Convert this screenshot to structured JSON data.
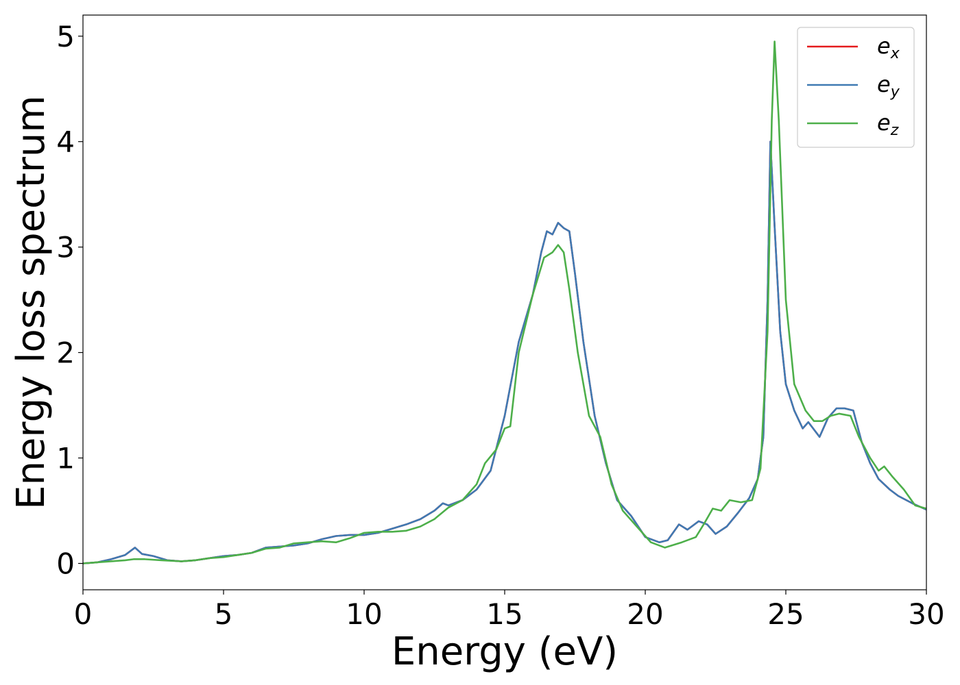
{
  "chart_data": {
    "type": "line",
    "xlabel": "Energy (eV)",
    "ylabel": "Energy loss spectrum",
    "xlim": [
      0,
      30
    ],
    "ylim": [
      -0.25,
      5.2
    ],
    "xticks": [
      "0",
      "5",
      "10",
      "15",
      "20",
      "25",
      "30"
    ],
    "yticks": [
      "0",
      "1",
      "2",
      "3",
      "4",
      "5"
    ],
    "xtick_values": [
      0,
      5,
      10,
      15,
      20,
      25,
      30
    ],
    "ytick_values": [
      0,
      1,
      2,
      3,
      4,
      5
    ],
    "grid": false,
    "legend_position": "top-right",
    "series": [
      {
        "name": "e_x",
        "label_base": "e",
        "label_sub": "x",
        "color": "#e41a1c",
        "points": [
          [
            0,
            0
          ],
          [
            0.5,
            0.01
          ],
          [
            1,
            0.04
          ],
          [
            1.5,
            0.08
          ],
          [
            1.85,
            0.15
          ],
          [
            2.1,
            0.09
          ],
          [
            2.5,
            0.07
          ],
          [
            3,
            0.03
          ],
          [
            3.5,
            0.02
          ],
          [
            4,
            0.03
          ],
          [
            4.5,
            0.05
          ],
          [
            5,
            0.07
          ],
          [
            5.5,
            0.08
          ],
          [
            6,
            0.1
          ],
          [
            6.5,
            0.15
          ],
          [
            7,
            0.16
          ],
          [
            7.5,
            0.17
          ],
          [
            8,
            0.19
          ],
          [
            8.5,
            0.23
          ],
          [
            9,
            0.26
          ],
          [
            9.5,
            0.27
          ],
          [
            10,
            0.27
          ],
          [
            10.5,
            0.29
          ],
          [
            11,
            0.33
          ],
          [
            11.5,
            0.37
          ],
          [
            12,
            0.42
          ],
          [
            12.5,
            0.5
          ],
          [
            12.8,
            0.57
          ],
          [
            13,
            0.55
          ],
          [
            13.5,
            0.6
          ],
          [
            14,
            0.7
          ],
          [
            14.5,
            0.88
          ],
          [
            15,
            1.4
          ],
          [
            15.5,
            2.1
          ],
          [
            16,
            2.55
          ],
          [
            16.3,
            2.95
          ],
          [
            16.5,
            3.15
          ],
          [
            16.7,
            3.12
          ],
          [
            16.9,
            3.23
          ],
          [
            17.1,
            3.18
          ],
          [
            17.3,
            3.15
          ],
          [
            17.5,
            2.75
          ],
          [
            17.8,
            2.1
          ],
          [
            18.2,
            1.4
          ],
          [
            18.6,
            0.95
          ],
          [
            19,
            0.6
          ],
          [
            19.5,
            0.45
          ],
          [
            20,
            0.25
          ],
          [
            20.5,
            0.2
          ],
          [
            20.8,
            0.22
          ],
          [
            21.2,
            0.37
          ],
          [
            21.5,
            0.32
          ],
          [
            21.9,
            0.4
          ],
          [
            22.2,
            0.37
          ],
          [
            22.5,
            0.28
          ],
          [
            22.9,
            0.35
          ],
          [
            23.3,
            0.48
          ],
          [
            23.7,
            0.62
          ],
          [
            24,
            0.8
          ],
          [
            24.2,
            1.2
          ],
          [
            24.35,
            2.5
          ],
          [
            24.45,
            4.0
          ],
          [
            24.6,
            3.2
          ],
          [
            24.8,
            2.2
          ],
          [
            25,
            1.7
          ],
          [
            25.3,
            1.45
          ],
          [
            25.6,
            1.28
          ],
          [
            25.8,
            1.34
          ],
          [
            26.2,
            1.2
          ],
          [
            26.5,
            1.38
          ],
          [
            26.8,
            1.47
          ],
          [
            27.1,
            1.47
          ],
          [
            27.4,
            1.45
          ],
          [
            27.7,
            1.15
          ],
          [
            28,
            0.95
          ],
          [
            28.3,
            0.8
          ],
          [
            28.7,
            0.7
          ],
          [
            29,
            0.64
          ],
          [
            29.5,
            0.57
          ],
          [
            30,
            0.51
          ]
        ]
      },
      {
        "name": "e_y",
        "label_base": "e",
        "label_sub": "y",
        "color": "#3f7ab3",
        "points": [
          [
            0,
            0
          ],
          [
            0.5,
            0.01
          ],
          [
            1,
            0.04
          ],
          [
            1.5,
            0.08
          ],
          [
            1.85,
            0.15
          ],
          [
            2.1,
            0.09
          ],
          [
            2.5,
            0.07
          ],
          [
            3,
            0.03
          ],
          [
            3.5,
            0.02
          ],
          [
            4,
            0.03
          ],
          [
            4.5,
            0.05
          ],
          [
            5,
            0.07
          ],
          [
            5.5,
            0.08
          ],
          [
            6,
            0.1
          ],
          [
            6.5,
            0.15
          ],
          [
            7,
            0.16
          ],
          [
            7.5,
            0.17
          ],
          [
            8,
            0.19
          ],
          [
            8.5,
            0.23
          ],
          [
            9,
            0.26
          ],
          [
            9.5,
            0.27
          ],
          [
            10,
            0.27
          ],
          [
            10.5,
            0.29
          ],
          [
            11,
            0.33
          ],
          [
            11.5,
            0.37
          ],
          [
            12,
            0.42
          ],
          [
            12.5,
            0.5
          ],
          [
            12.8,
            0.57
          ],
          [
            13,
            0.55
          ],
          [
            13.5,
            0.6
          ],
          [
            14,
            0.7
          ],
          [
            14.5,
            0.88
          ],
          [
            15,
            1.4
          ],
          [
            15.5,
            2.1
          ],
          [
            16,
            2.55
          ],
          [
            16.3,
            2.95
          ],
          [
            16.5,
            3.15
          ],
          [
            16.7,
            3.12
          ],
          [
            16.9,
            3.23
          ],
          [
            17.1,
            3.18
          ],
          [
            17.3,
            3.15
          ],
          [
            17.5,
            2.75
          ],
          [
            17.8,
            2.1
          ],
          [
            18.2,
            1.4
          ],
          [
            18.6,
            0.95
          ],
          [
            19,
            0.6
          ],
          [
            19.5,
            0.45
          ],
          [
            20,
            0.25
          ],
          [
            20.5,
            0.2
          ],
          [
            20.8,
            0.22
          ],
          [
            21.2,
            0.37
          ],
          [
            21.5,
            0.32
          ],
          [
            21.9,
            0.4
          ],
          [
            22.2,
            0.37
          ],
          [
            22.5,
            0.28
          ],
          [
            22.9,
            0.35
          ],
          [
            23.3,
            0.48
          ],
          [
            23.7,
            0.62
          ],
          [
            24,
            0.8
          ],
          [
            24.2,
            1.2
          ],
          [
            24.35,
            2.5
          ],
          [
            24.45,
            4.0
          ],
          [
            24.6,
            3.2
          ],
          [
            24.8,
            2.2
          ],
          [
            25,
            1.7
          ],
          [
            25.3,
            1.45
          ],
          [
            25.6,
            1.28
          ],
          [
            25.8,
            1.34
          ],
          [
            26.2,
            1.2
          ],
          [
            26.5,
            1.38
          ],
          [
            26.8,
            1.47
          ],
          [
            27.1,
            1.47
          ],
          [
            27.4,
            1.45
          ],
          [
            27.7,
            1.15
          ],
          [
            28,
            0.95
          ],
          [
            28.3,
            0.8
          ],
          [
            28.7,
            0.7
          ],
          [
            29,
            0.64
          ],
          [
            29.5,
            0.57
          ],
          [
            30,
            0.51
          ]
        ]
      },
      {
        "name": "e_z",
        "label_base": "e",
        "label_sub": "z",
        "color": "#4daf4a",
        "points": [
          [
            0,
            0
          ],
          [
            0.5,
            0.01
          ],
          [
            1,
            0.02
          ],
          [
            1.5,
            0.03
          ],
          [
            1.8,
            0.04
          ],
          [
            2.2,
            0.04
          ],
          [
            2.8,
            0.03
          ],
          [
            3.5,
            0.02
          ],
          [
            4,
            0.03
          ],
          [
            4.5,
            0.05
          ],
          [
            5,
            0.06
          ],
          [
            5.5,
            0.08
          ],
          [
            6,
            0.1
          ],
          [
            6.5,
            0.14
          ],
          [
            7,
            0.15
          ],
          [
            7.5,
            0.19
          ],
          [
            8,
            0.2
          ],
          [
            8.5,
            0.21
          ],
          [
            9,
            0.2
          ],
          [
            9.5,
            0.24
          ],
          [
            10,
            0.29
          ],
          [
            10.5,
            0.3
          ],
          [
            11,
            0.3
          ],
          [
            11.5,
            0.31
          ],
          [
            12,
            0.35
          ],
          [
            12.5,
            0.42
          ],
          [
            13,
            0.53
          ],
          [
            13.5,
            0.6
          ],
          [
            14,
            0.75
          ],
          [
            14.3,
            0.95
          ],
          [
            14.7,
            1.08
          ],
          [
            15,
            1.28
          ],
          [
            15.2,
            1.3
          ],
          [
            15.5,
            2.0
          ],
          [
            16,
            2.55
          ],
          [
            16.4,
            2.9
          ],
          [
            16.7,
            2.95
          ],
          [
            16.9,
            3.02
          ],
          [
            17.1,
            2.95
          ],
          [
            17.3,
            2.6
          ],
          [
            17.6,
            2.0
          ],
          [
            18,
            1.4
          ],
          [
            18.4,
            1.2
          ],
          [
            18.8,
            0.75
          ],
          [
            19.2,
            0.5
          ],
          [
            19.7,
            0.35
          ],
          [
            20.2,
            0.2
          ],
          [
            20.7,
            0.15
          ],
          [
            21.3,
            0.2
          ],
          [
            21.8,
            0.25
          ],
          [
            22.1,
            0.38
          ],
          [
            22.4,
            0.52
          ],
          [
            22.7,
            0.5
          ],
          [
            23,
            0.6
          ],
          [
            23.4,
            0.58
          ],
          [
            23.8,
            0.6
          ],
          [
            24.1,
            0.9
          ],
          [
            24.35,
            2.2
          ],
          [
            24.5,
            4.2
          ],
          [
            24.6,
            4.95
          ],
          [
            24.75,
            4.2
          ],
          [
            25,
            2.5
          ],
          [
            25.3,
            1.7
          ],
          [
            25.7,
            1.45
          ],
          [
            26,
            1.35
          ],
          [
            26.3,
            1.35
          ],
          [
            26.6,
            1.4
          ],
          [
            26.9,
            1.42
          ],
          [
            27.3,
            1.4
          ],
          [
            27.6,
            1.2
          ],
          [
            28,
            1.0
          ],
          [
            28.3,
            0.88
          ],
          [
            28.5,
            0.92
          ],
          [
            28.8,
            0.82
          ],
          [
            29.2,
            0.7
          ],
          [
            29.6,
            0.55
          ],
          [
            30,
            0.52
          ]
        ]
      }
    ]
  }
}
